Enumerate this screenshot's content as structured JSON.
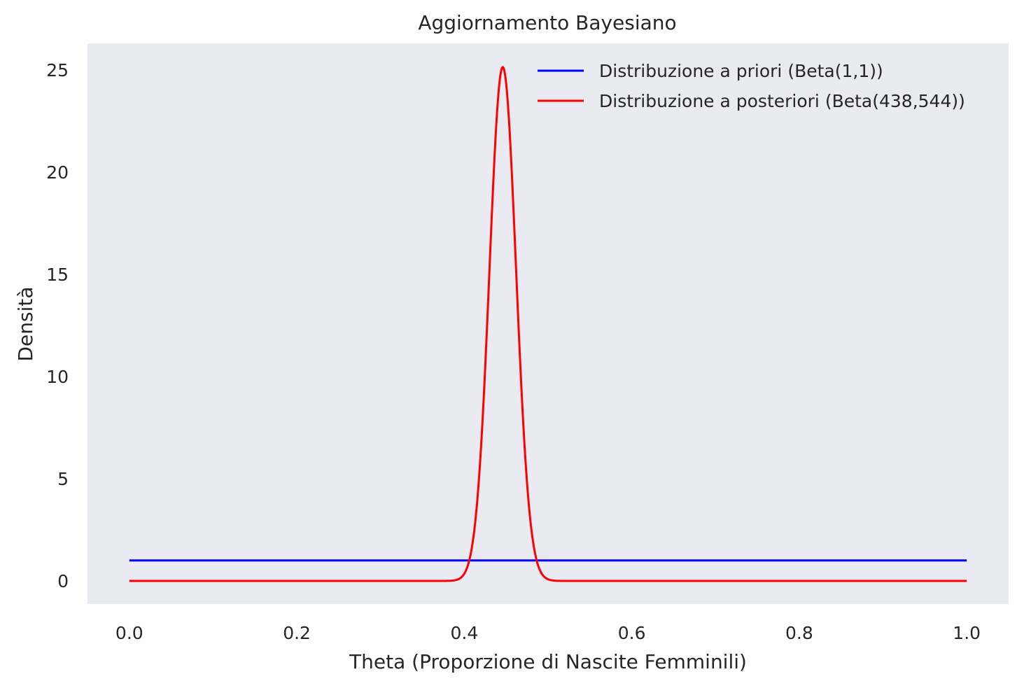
{
  "chart_data": {
    "type": "line",
    "title": "Aggiornamento Bayesiano",
    "xlabel": "Theta (Proporzione di Nascite Femminili)",
    "ylabel": "Densità",
    "xlim": [
      -0.05,
      1.05
    ],
    "ylim": [
      -1.13,
      26.3
    ],
    "x_ticks": [
      0.0,
      0.2,
      0.4,
      0.6,
      0.8,
      1.0
    ],
    "x_tick_labels": [
      "0.0",
      "0.2",
      "0.4",
      "0.6",
      "0.8",
      "1.0"
    ],
    "y_ticks": [
      0,
      5,
      10,
      15,
      20,
      25
    ],
    "y_tick_labels": [
      "0",
      "5",
      "10",
      "15",
      "20",
      "25"
    ],
    "grid": false,
    "background": "#eaeaf2",
    "legend_position": "top-right",
    "series": [
      {
        "name": "Distribuzione a priori (Beta(1,1))",
        "color": "#0000ff",
        "distribution": "beta",
        "alpha": 1,
        "beta": 1,
        "x_range": [
          0,
          1
        ]
      },
      {
        "name": "Distribuzione a posteriori (Beta(438,544))",
        "color": "#ff0000",
        "distribution": "beta",
        "alpha": 438,
        "beta": 544,
        "x_range": [
          0,
          1
        ]
      }
    ]
  }
}
